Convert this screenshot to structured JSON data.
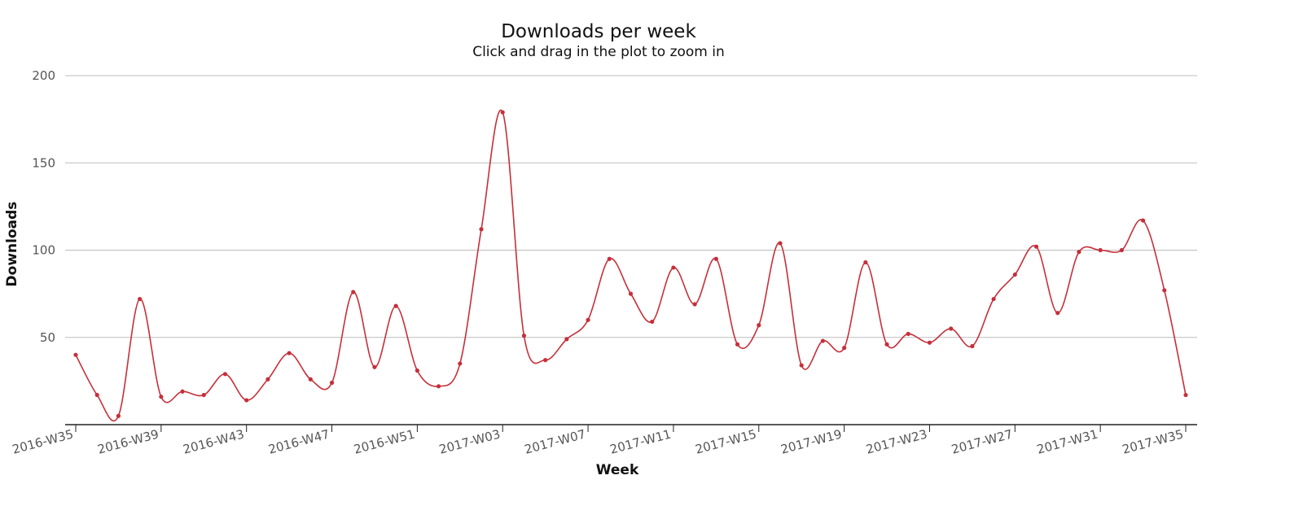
{
  "chart_data": {
    "type": "line",
    "title": "Downloads per week",
    "subtitle": "Click and drag in the plot to zoom in",
    "xlabel": "Week",
    "ylabel": "Downloads",
    "ylim": [
      0,
      200
    ],
    "yticks": [
      50,
      100,
      150,
      200
    ],
    "grid": true,
    "legend": "none",
    "line_color": "#c62f3a",
    "grid_color": "#bdbdbd",
    "x_tick_labels": [
      "2016-W35",
      "2016-W39",
      "2016-W43",
      "2016-W47",
      "2016-W51",
      "2017-W03",
      "2017-W07",
      "2017-W11",
      "2017-W15",
      "2017-W19",
      "2017-W23",
      "2017-W27",
      "2017-W31",
      "2017-W35"
    ],
    "categories": [
      "2016-W35",
      "2016-W36",
      "2016-W37",
      "2016-W38",
      "2016-W39",
      "2016-W40",
      "2016-W41",
      "2016-W42",
      "2016-W43",
      "2016-W44",
      "2016-W45",
      "2016-W46",
      "2016-W47",
      "2016-W48",
      "2016-W49",
      "2016-W50",
      "2016-W51",
      "2016-W52",
      "2017-W01",
      "2017-W02",
      "2017-W03",
      "2017-W04",
      "2017-W05",
      "2017-W06",
      "2017-W07",
      "2017-W08",
      "2017-W09",
      "2017-W10",
      "2017-W11",
      "2017-W12",
      "2017-W13",
      "2017-W14",
      "2017-W15",
      "2017-W16",
      "2017-W17",
      "2017-W18",
      "2017-W19",
      "2017-W20",
      "2017-W21",
      "2017-W22",
      "2017-W23",
      "2017-W24",
      "2017-W25",
      "2017-W26",
      "2017-W27",
      "2017-W28",
      "2017-W29",
      "2017-W30",
      "2017-W31",
      "2017-W32",
      "2017-W33",
      "2017-W34",
      "2017-W35"
    ],
    "series": [
      {
        "values": [
          40,
          17,
          5,
          72,
          16,
          19,
          17,
          29,
          14,
          26,
          41,
          26,
          24,
          76,
          33,
          68,
          31,
          22,
          35,
          112,
          179,
          51,
          37,
          49,
          60,
          95,
          75,
          59,
          90,
          69,
          95,
          46,
          57,
          104,
          34,
          48,
          44,
          93,
          46,
          52,
          47,
          55,
          45,
          72,
          86,
          102,
          64,
          99,
          100,
          100,
          117,
          77,
          17
        ]
      }
    ]
  }
}
